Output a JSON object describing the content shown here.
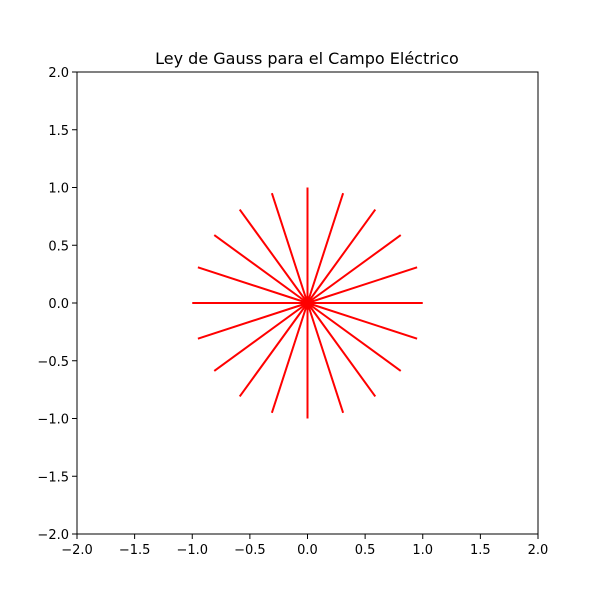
{
  "chart_data": {
    "type": "line",
    "title": "Ley de Gauss para el Campo Eléctrico",
    "xlabel": "",
    "ylabel": "",
    "xlim": [
      -2.0,
      2.0
    ],
    "ylim": [
      -2.0,
      2.0
    ],
    "x_ticks": [
      -2.0,
      -1.5,
      -1.0,
      -0.5,
      0.0,
      0.5,
      1.0,
      1.5,
      2.0
    ],
    "y_ticks": [
      -2.0,
      -1.5,
      -1.0,
      -0.5,
      0.0,
      0.5,
      1.0,
      1.5,
      2.0
    ],
    "x_tick_labels": [
      "−2.0",
      "−1.5",
      "−1.0",
      "−0.5",
      "0.0",
      "0.5",
      "1.0",
      "1.5",
      "2.0"
    ],
    "y_tick_labels": [
      "−2.0",
      "−1.5",
      "−1.0",
      "−0.5",
      "0.0",
      "0.5",
      "1.0",
      "1.5",
      "2.0"
    ],
    "grid": false,
    "line_color": "#ff0000",
    "origin": [
      0.0,
      0.0
    ],
    "series": [
      {
        "x": [
          0,
          1.0
        ],
        "y": [
          0,
          0.0
        ]
      },
      {
        "x": [
          0,
          0.951
        ],
        "y": [
          0,
          0.309
        ]
      },
      {
        "x": [
          0,
          0.809
        ],
        "y": [
          0,
          0.588
        ]
      },
      {
        "x": [
          0,
          0.588
        ],
        "y": [
          0,
          0.809
        ]
      },
      {
        "x": [
          0,
          0.309
        ],
        "y": [
          0,
          0.951
        ]
      },
      {
        "x": [
          0,
          0.0
        ],
        "y": [
          0,
          1.0
        ]
      },
      {
        "x": [
          0,
          -0.309
        ],
        "y": [
          0,
          0.951
        ]
      },
      {
        "x": [
          0,
          -0.588
        ],
        "y": [
          0,
          0.809
        ]
      },
      {
        "x": [
          0,
          -0.809
        ],
        "y": [
          0,
          0.588
        ]
      },
      {
        "x": [
          0,
          -0.951
        ],
        "y": [
          0,
          0.309
        ]
      },
      {
        "x": [
          0,
          -1.0
        ],
        "y": [
          0,
          0.0
        ]
      },
      {
        "x": [
          0,
          -0.951
        ],
        "y": [
          0,
          -0.309
        ]
      },
      {
        "x": [
          0,
          -0.809
        ],
        "y": [
          0,
          -0.588
        ]
      },
      {
        "x": [
          0,
          -0.588
        ],
        "y": [
          0,
          -0.809
        ]
      },
      {
        "x": [
          0,
          -0.309
        ],
        "y": [
          0,
          -0.951
        ]
      },
      {
        "x": [
          0,
          0.0
        ],
        "y": [
          0,
          -1.0
        ]
      },
      {
        "x": [
          0,
          0.309
        ],
        "y": [
          0,
          -0.951
        ]
      },
      {
        "x": [
          0,
          0.588
        ],
        "y": [
          0,
          -0.809
        ]
      },
      {
        "x": [
          0,
          0.809
        ],
        "y": [
          0,
          -0.588
        ]
      },
      {
        "x": [
          0,
          0.951
        ],
        "y": [
          0,
          -0.309
        ]
      }
    ]
  }
}
